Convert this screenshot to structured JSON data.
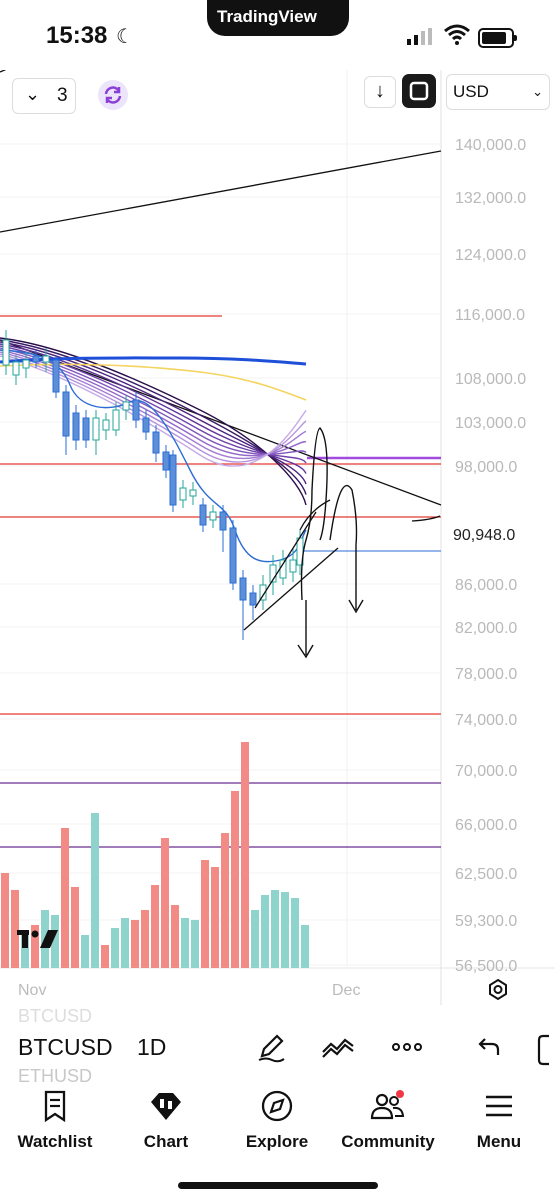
{
  "status": {
    "time": "15:38",
    "pill": "TradingView"
  },
  "toolbar": {
    "intervals_count": "3",
    "currency": "USD"
  },
  "price_axis": {
    "labels": [
      "140,000.0",
      "132,000.0",
      "124,000.0",
      "116,000.0",
      "108,000.0",
      "103,000.0",
      "98,000.0",
      "90,948.0",
      "86,000.0",
      "82,000.0",
      "78,000.0",
      "74,000.0",
      "70,000.0",
      "66,000.0",
      "62,500.0",
      "59,300.0",
      "56,500.0"
    ],
    "current_price": "90,948.0"
  },
  "time_axis": {
    "labels": [
      "Nov",
      "Dec"
    ]
  },
  "symbol_bar": {
    "top_ghost": "BTCUSD",
    "symbol": "BTCUSD",
    "below": "ETHUSD",
    "timeframe": "1D"
  },
  "tabs": [
    {
      "label": "Watchlist",
      "icon": "watchlist-icon"
    },
    {
      "label": "Chart",
      "icon": "chart-icon"
    },
    {
      "label": "Explore",
      "icon": "compass-icon"
    },
    {
      "label": "Community",
      "icon": "community-icon"
    },
    {
      "label": "Menu",
      "icon": "menu-icon"
    }
  ],
  "colors": {
    "up": "#26a69a",
    "down": "#ef5350",
    "hline_red": "#e53935",
    "hline_purple": "#6a2c91",
    "ma_blue": "#1e4fd8",
    "ma_yellow": "#f4d35e"
  }
}
